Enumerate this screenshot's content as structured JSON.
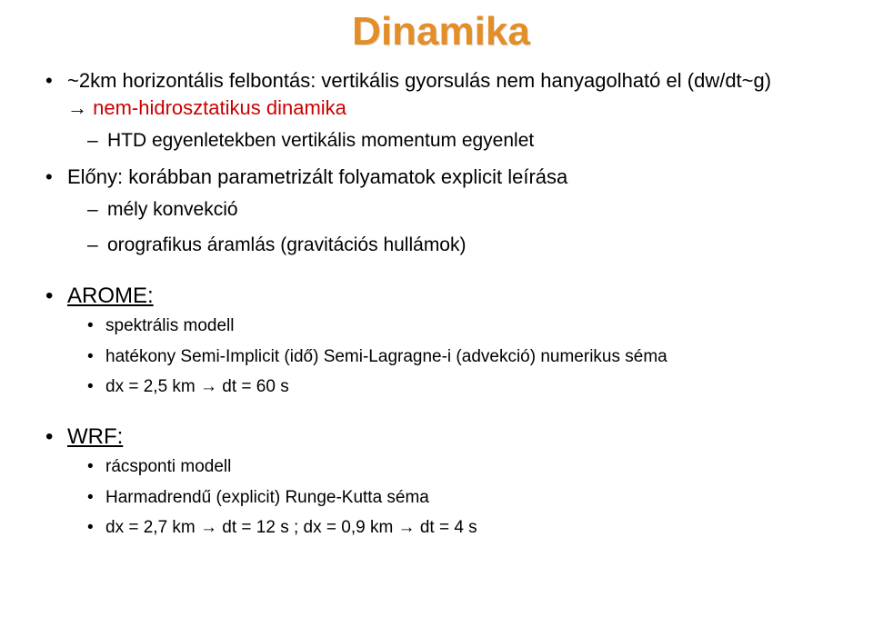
{
  "title": "Dinamika",
  "bullet1": {
    "line1a": "~2km horizontális felbontás: vertikális gyorsulás nem hanyagolható el (dw/dt~g)",
    "arrow": "→",
    "line1b_red": " nem-hidrosztatikus dinamika",
    "dash1": "HTD egyenletekben vertikális momentum egyenlet"
  },
  "bullet2": {
    "text": "Előny: korábban parametrizált folyamatok explicit leírása",
    "dash1": "mély konvekció",
    "dash2": "orografikus áramlás (gravitációs hullámok)"
  },
  "arome": {
    "head": "AROME:",
    "s1": "spektrális modell",
    "s2": "hatékony Semi-Implicit (idő) Semi-Lagragne-i (advekció) numerikus séma",
    "s3": "dx = 2,5 km → dt = 60 s"
  },
  "wrf": {
    "head": "WRF:",
    "s1": "rácsponti modell",
    "s2": "Harmadrendű (explicit) Runge-Kutta séma",
    "s3": "dx = 2,7 km → dt = 12 s ; dx = 0,9 km → dt = 4 s"
  }
}
